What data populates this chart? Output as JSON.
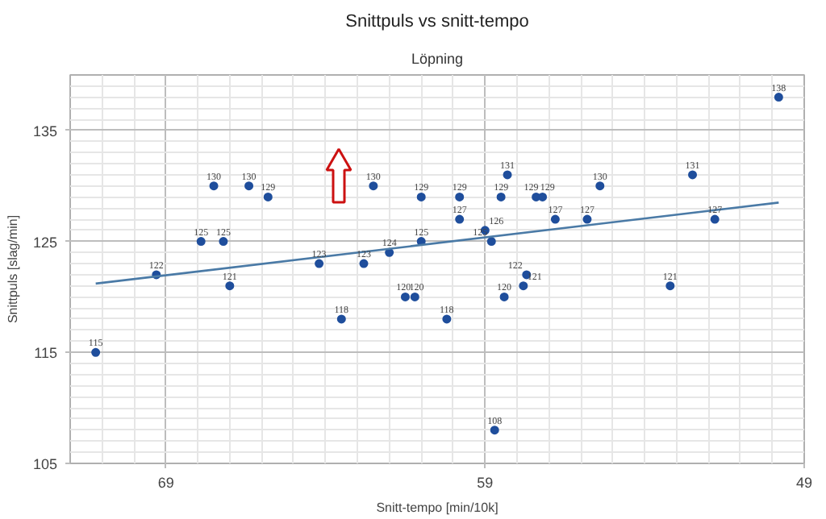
{
  "chart_data": {
    "type": "scatter",
    "title": "Snittpuls vs snitt-tempo",
    "subtitle": "Löpning",
    "xlabel": "Snitt-tempo [min/10k]",
    "ylabel": "Snittpuls [slag/min]",
    "xlim": [
      72,
      49
    ],
    "xticks": [
      69,
      59,
      49
    ],
    "ylim": [
      105,
      140
    ],
    "yticks": [
      105,
      115,
      125,
      135
    ],
    "grid": true,
    "marker": "circle",
    "series": [
      {
        "color": "#1f4e9c",
        "x": [
          71.2,
          69.3,
          67.9,
          67.5,
          67.2,
          67.0,
          66.4,
          65.8,
          64.2,
          63.5,
          62.8,
          62.5,
          62.0,
          61.5,
          61.2,
          61.0,
          61.0,
          60.2,
          59.8,
          59.8,
          59.0,
          58.8,
          58.7,
          58.5,
          58.4,
          58.3,
          57.8,
          57.7,
          57.4,
          57.2,
          56.8,
          55.8,
          55.4,
          53.2,
          52.5,
          51.8,
          49.8
        ],
        "values": [
          115,
          122,
          125,
          130,
          125,
          121,
          130,
          129,
          123,
          118,
          123,
          130,
          124,
          120,
          120,
          125,
          129,
          118,
          129,
          127,
          126,
          125,
          108,
          129,
          120,
          131,
          121,
          122,
          129,
          129,
          127,
          127,
          130,
          121,
          131,
          127,
          138
        ],
        "value_labels": [
          "115",
          "122",
          "125",
          "130",
          "125",
          "121",
          "130",
          "129",
          "123",
          "118",
          "123",
          "130",
          "124",
          "120",
          "120",
          "125",
          "129",
          "118",
          "129",
          "127",
          "126",
          "125",
          "108",
          "129",
          "120",
          "131",
          "121",
          "122",
          "129",
          "129",
          "127",
          "127",
          "130",
          "121",
          "131",
          "127",
          "138"
        ]
      },
      {
        "type": "line",
        "marker": "none",
        "color": "#4a7aa6",
        "x": [
          71.2,
          49.8
        ],
        "values": [
          121.2,
          128.5
        ]
      }
    ]
  }
}
